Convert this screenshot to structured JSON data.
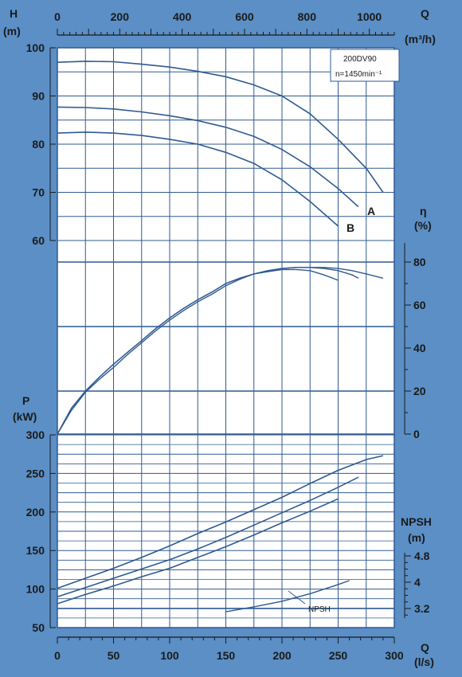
{
  "colors": {
    "frame": "#5b8fc6",
    "panel": "#ffffff",
    "grid": "#2f5a91",
    "curve": "#2f5a91",
    "text": "#1a1a1a"
  },
  "top_axis": {
    "label_q": "Q",
    "label_unit": "(m³/h)",
    "ticks": [
      "0",
      "200",
      "400",
      "600",
      "800",
      "1000"
    ]
  },
  "bottom_axis": {
    "label_q": "Q",
    "label_unit": "(l/s)",
    "ticks": [
      "0",
      "50",
      "100",
      "150",
      "200",
      "250",
      "300"
    ]
  },
  "chart_data": [
    {
      "type": "line",
      "panel": "head",
      "ylabel": "H",
      "yunit": "(m)",
      "ylim": [
        57,
        100
      ],
      "yticks": [
        "100",
        "90",
        "80",
        "70",
        "60"
      ],
      "xlim": [
        0,
        300
      ],
      "series": [
        {
          "name": "A",
          "x": [
            0,
            25,
            50,
            75,
            100,
            125,
            150,
            175,
            200,
            225,
            250,
            275,
            290
          ],
          "y": [
            97.0,
            97.2,
            97.1,
            96.6,
            96.0,
            95.1,
            94.0,
            92.3,
            90.0,
            86.3,
            81.0,
            75.0,
            70.0
          ]
        },
        {
          "name": "",
          "x": [
            0,
            25,
            50,
            75,
            100,
            125,
            150,
            175,
            200,
            225,
            250,
            268
          ],
          "y": [
            87.7,
            87.6,
            87.3,
            86.7,
            85.9,
            84.9,
            83.5,
            81.6,
            78.9,
            75.3,
            70.8,
            67.0
          ]
        },
        {
          "name": "B",
          "x": [
            0,
            25,
            50,
            75,
            100,
            125,
            150,
            175,
            200,
            225,
            250
          ],
          "y": [
            82.3,
            82.5,
            82.3,
            81.8,
            81.0,
            80.0,
            78.3,
            76.0,
            72.6,
            68.1,
            63.0
          ]
        }
      ],
      "annotations": [
        {
          "text": "A"
        },
        {
          "text": "B"
        }
      ],
      "info_box": [
        "200DV90",
        "n=1450min⁻¹"
      ]
    },
    {
      "type": "line",
      "panel": "efficiency",
      "ylabel": "η",
      "yunit": "(%)",
      "ylim": [
        0,
        80
      ],
      "yticks": [
        "80",
        "60",
        "40",
        "20",
        "0"
      ],
      "xlim": [
        0,
        300
      ],
      "series": [
        {
          "name": "",
          "x": [
            0,
            12.5,
            25,
            37.5,
            50,
            62.5,
            75,
            87.5,
            100,
            112.5,
            125,
            137.5,
            150,
            162.5,
            175,
            187.5,
            200,
            212.5,
            225,
            237.5,
            250,
            262.5,
            275,
            290
          ],
          "y": [
            0,
            12,
            20,
            26.5,
            32.5,
            38,
            43.5,
            49,
            54,
            58.5,
            62.5,
            66,
            70,
            72.5,
            74.5,
            76,
            77,
            77.5,
            77.5,
            77.5,
            77,
            76,
            74.5,
            72.5
          ]
        },
        {
          "name": "",
          "x": [
            0,
            12.5,
            25,
            37.5,
            50,
            62.5,
            75,
            87.5,
            100,
            112.5,
            125,
            137.5,
            150,
            162.5,
            175,
            187.5,
            200,
            212.5,
            225,
            237.5,
            250,
            262.5,
            268
          ],
          "y": [
            0,
            12,
            20,
            26.5,
            32.5,
            38,
            43.5,
            49,
            54,
            58.5,
            62.5,
            66,
            70,
            72.5,
            74.5,
            76,
            77,
            77.5,
            77.5,
            77,
            76,
            74,
            72.5
          ]
        },
        {
          "name": "",
          "x": [
            0,
            12.5,
            25,
            37.5,
            50,
            62.5,
            75,
            87.5,
            100,
            112.5,
            125,
            137.5,
            150,
            162.5,
            175,
            187.5,
            200,
            212.5,
            225,
            237.5,
            250
          ],
          "y": [
            0,
            11,
            19.5,
            25.5,
            31,
            37,
            42.5,
            48,
            53,
            57.5,
            61.5,
            65,
            69,
            72,
            74.5,
            75.5,
            76.5,
            76.5,
            76,
            74,
            71.5
          ]
        }
      ]
    },
    {
      "type": "line",
      "panel": "power",
      "ylabel": "P",
      "yunit": "(kW)",
      "ylim": [
        50,
        300
      ],
      "yticks": [
        "300",
        "250",
        "200",
        "150",
        "100",
        "50"
      ],
      "xlim": [
        0,
        300
      ],
      "series": [
        {
          "name": "",
          "x": [
            0,
            25,
            50,
            75,
            100,
            125,
            150,
            175,
            200,
            225,
            250,
            275,
            290
          ],
          "y": [
            101,
            114,
            127,
            141,
            156,
            172,
            187,
            203,
            219,
            237,
            254,
            268,
            273
          ]
        },
        {
          "name": "",
          "x": [
            0,
            25,
            50,
            75,
            100,
            125,
            150,
            175,
            200,
            225,
            250,
            268
          ],
          "y": [
            90,
            102,
            114,
            126,
            138,
            152,
            167,
            183,
            199,
            215,
            232,
            245
          ]
        },
        {
          "name": "",
          "x": [
            0,
            25,
            50,
            75,
            100,
            125,
            150,
            175,
            200,
            225,
            250
          ],
          "y": [
            81,
            93,
            104,
            116,
            127,
            141,
            155,
            170,
            186,
            201,
            217
          ]
        }
      ]
    },
    {
      "type": "line",
      "panel": "npsh",
      "ylabel": "NPSH",
      "yunit": "(m)",
      "ylim": [
        3.0,
        5.0
      ],
      "yticks": [
        "4.8",
        "4",
        "3.2"
      ],
      "xlim": [
        0,
        300
      ],
      "series": [
        {
          "name": "NPSH",
          "x": [
            150,
            175,
            200,
            225,
            250,
            260
          ],
          "y": [
            3.1,
            3.25,
            3.42,
            3.65,
            3.93,
            4.05
          ]
        }
      ]
    }
  ]
}
